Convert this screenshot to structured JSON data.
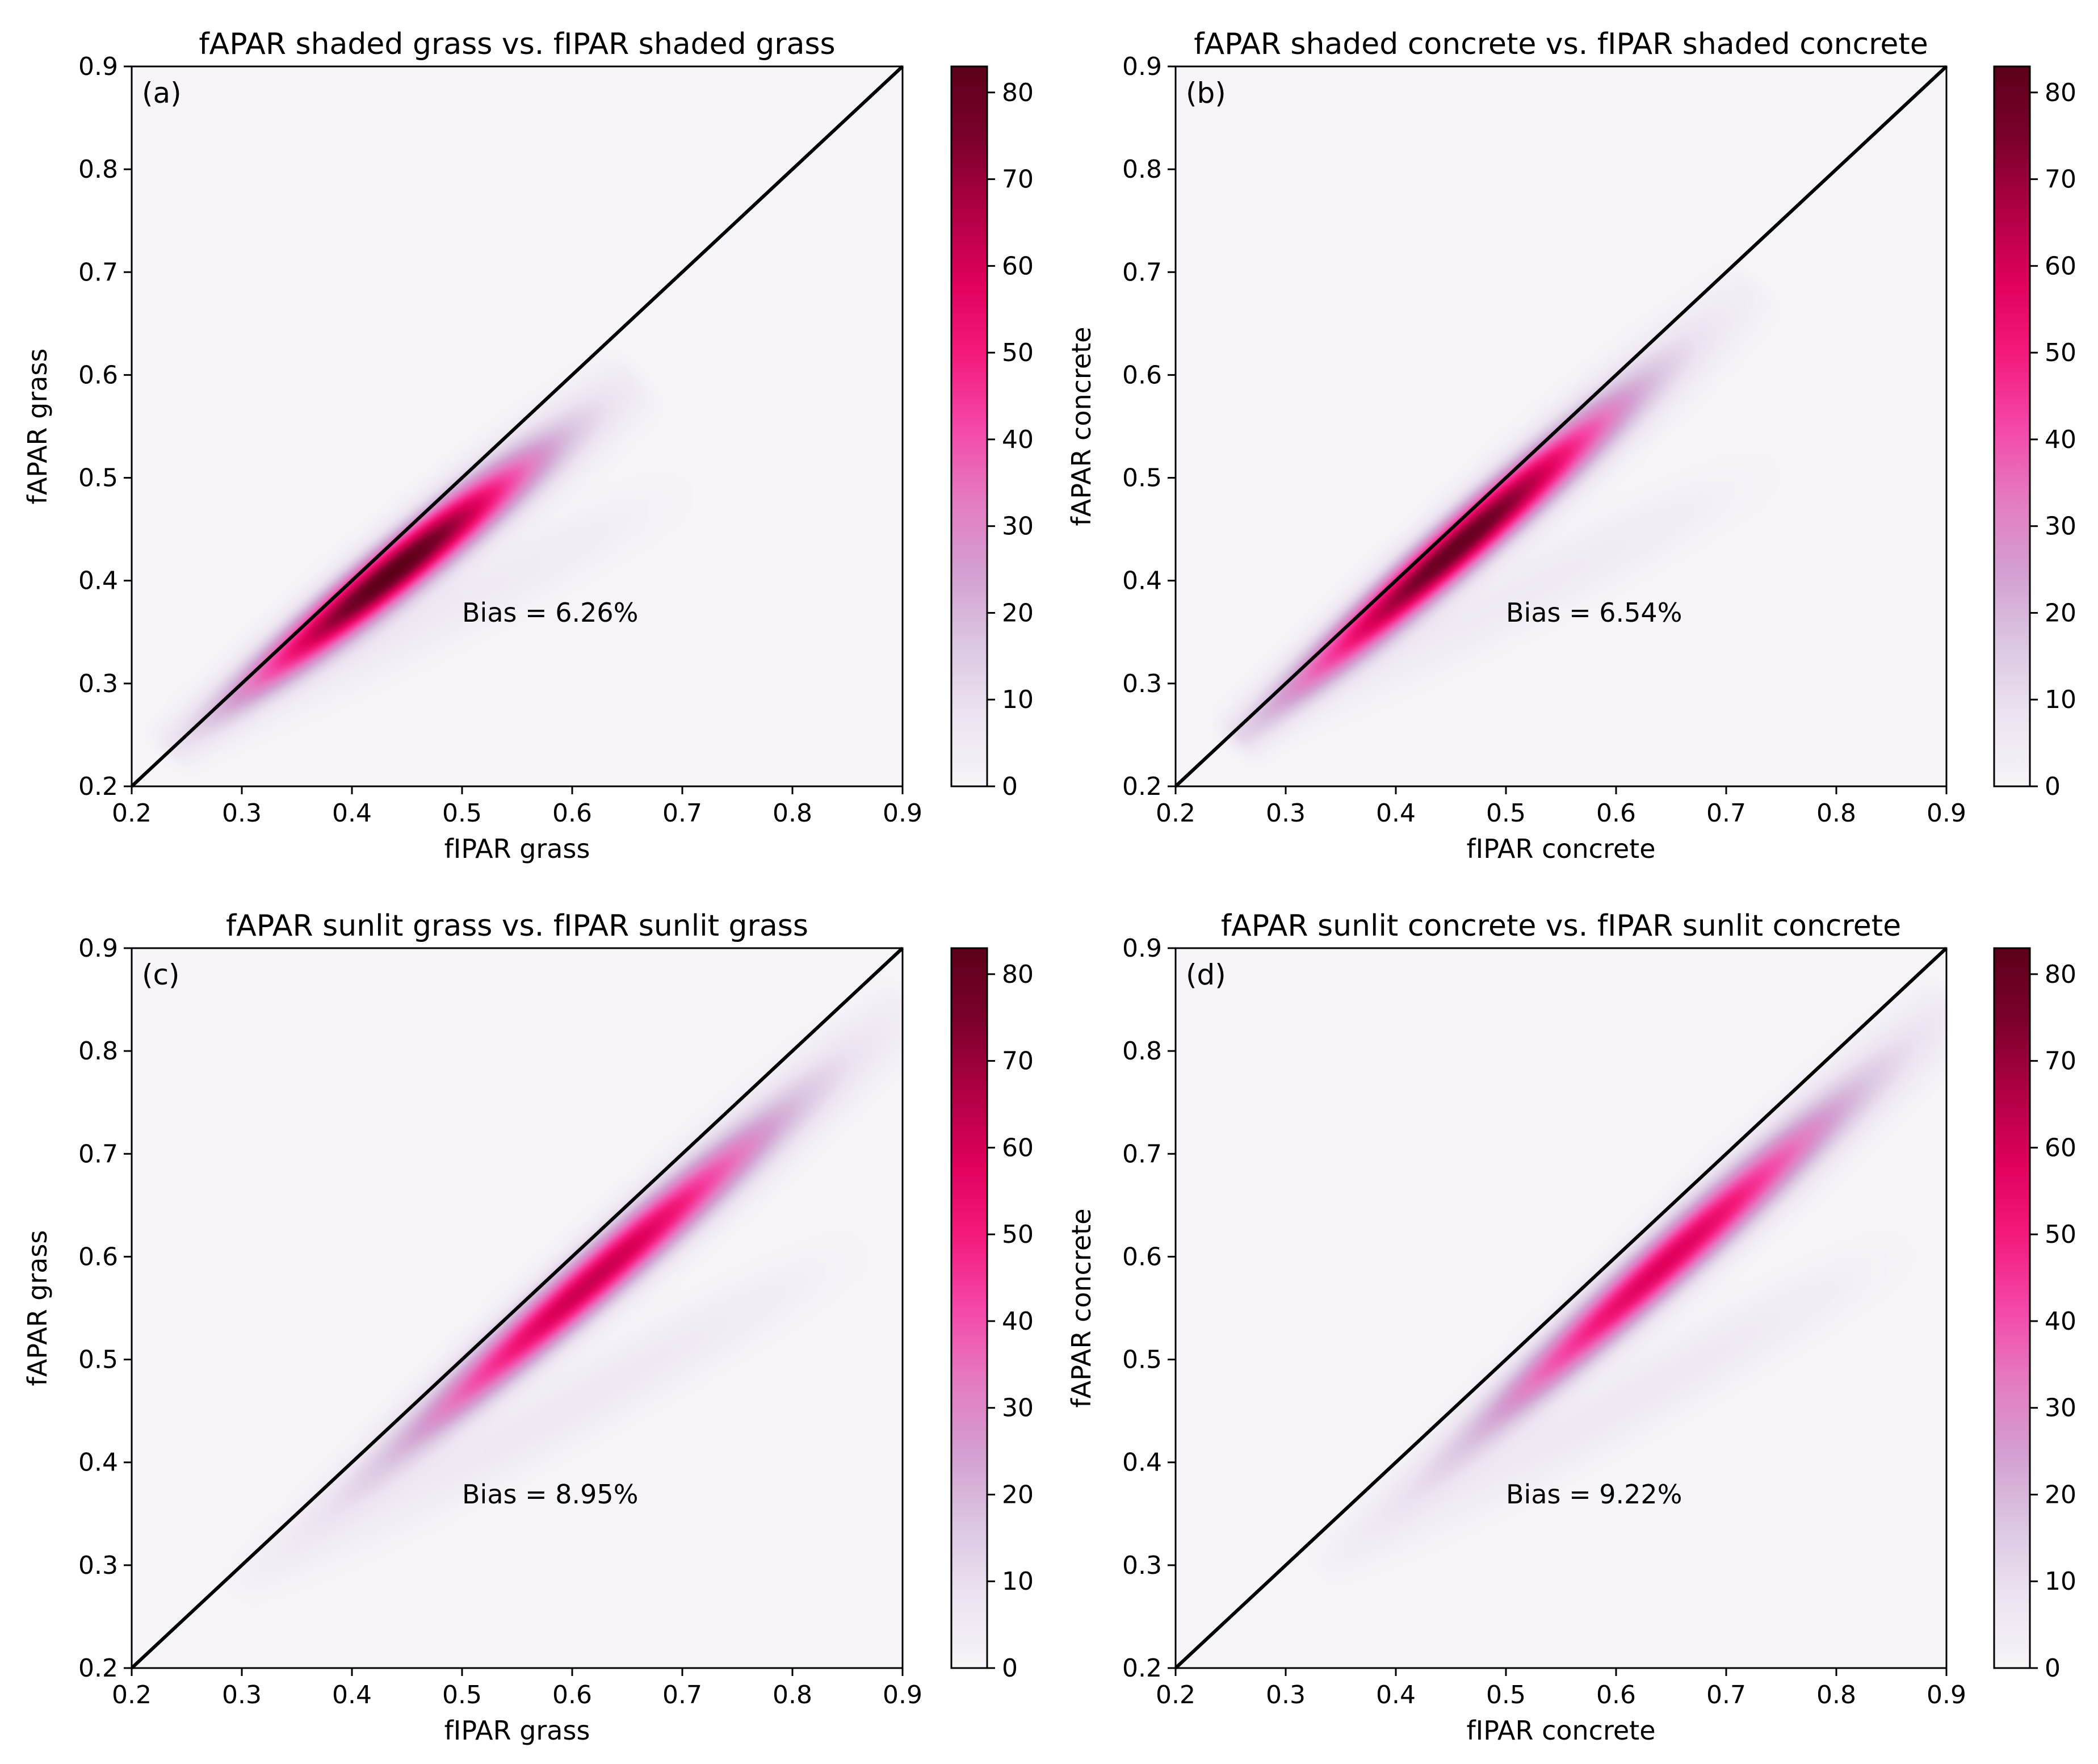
{
  "figure": {
    "colormap": {
      "name": "RdPu",
      "stops": [
        "#f7f4f9",
        "#ece3f0",
        "#dbc6e2",
        "#d39ed0",
        "#e57ac0",
        "#f447a8",
        "#f41a7c",
        "#e0005c",
        "#b00043",
        "#7a002c",
        "#5c0018"
      ],
      "vmin": 0,
      "vmax": 83,
      "ticks": [
        0,
        10,
        20,
        30,
        40,
        50,
        60,
        70,
        80
      ]
    },
    "axis_ticks": [
      0.2,
      0.3,
      0.4,
      0.5,
      0.6,
      0.7,
      0.8,
      0.9
    ],
    "axis_tick_labels": [
      "0.2",
      "0.3",
      "0.4",
      "0.5",
      "0.6",
      "0.7",
      "0.8",
      "0.9"
    ],
    "line_color": "#000000"
  },
  "chart_data": [
    {
      "type": "heatmap",
      "panel": "(a)",
      "title": "fAPAR shaded grass vs. fIPAR shaded grass",
      "xlabel": "fIPAR grass",
      "ylabel": "fAPAR grass",
      "xlim": [
        0.2,
        0.9
      ],
      "ylim": [
        0.2,
        0.9
      ],
      "annotation": "Bias = 6.26%",
      "one_to_one_line": true,
      "colorbar_range": [
        0,
        83
      ],
      "density": {
        "ridge_start": [
          0.24,
          0.24
        ],
        "ridge_end": [
          0.65,
          0.59
        ],
        "peak": [
          0.43,
          0.415
        ],
        "peak_value": 83,
        "spread": 0.12,
        "secondary_ridge_end": [
          0.72,
          0.5
        ],
        "secondary_value": 5
      }
    },
    {
      "type": "heatmap",
      "panel": "(b)",
      "title": "fAPAR shaded concrete vs. fIPAR shaded concrete",
      "xlabel": "fIPAR concrete",
      "ylabel": "fAPAR concrete",
      "xlim": [
        0.2,
        0.9
      ],
      "ylim": [
        0.2,
        0.9
      ],
      "annotation": "Bias = 6.54%",
      "one_to_one_line": true,
      "colorbar_range": [
        0,
        83
      ],
      "density": {
        "ridge_start": [
          0.26,
          0.25
        ],
        "ridge_end": [
          0.72,
          0.68
        ],
        "peak": [
          0.46,
          0.43
        ],
        "peak_value": 80,
        "spread": 0.14,
        "secondary_ridge_end": [
          0.76,
          0.52
        ],
        "secondary_value": 5
      }
    },
    {
      "type": "heatmap",
      "panel": "(c)",
      "title": "fAPAR sunlit grass vs. fIPAR sunlit grass",
      "xlabel": "fIPAR grass",
      "ylabel": "fAPAR grass",
      "xlim": [
        0.2,
        0.9
      ],
      "ylim": [
        0.2,
        0.9
      ],
      "annotation": "Bias = 8.95%",
      "one_to_one_line": true,
      "colorbar_range": [
        0,
        83
      ],
      "density": {
        "ridge_start": [
          0.3,
          0.28
        ],
        "ridge_end": [
          0.9,
          0.84
        ],
        "peak": [
          0.62,
          0.58
        ],
        "peak_value": 62,
        "spread": 0.16,
        "secondary_ridge_end": [
          0.88,
          0.62
        ],
        "secondary_value": 6
      }
    },
    {
      "type": "heatmap",
      "panel": "(d)",
      "title": "fAPAR sunlit concrete vs. fIPAR sunlit concrete",
      "xlabel": "fIPAR concrete",
      "ylabel": "fAPAR concrete",
      "xlim": [
        0.2,
        0.9
      ],
      "ylim": [
        0.2,
        0.9
      ],
      "annotation": "Bias = 9.22%",
      "one_to_one_line": true,
      "colorbar_range": [
        0,
        83
      ],
      "density": {
        "ridge_start": [
          0.34,
          0.3
        ],
        "ridge_end": [
          0.9,
          0.84
        ],
        "peak": [
          0.64,
          0.6
        ],
        "peak_value": 58,
        "spread": 0.16,
        "secondary_ridge_end": [
          0.88,
          0.62
        ],
        "secondary_value": 6
      }
    }
  ]
}
